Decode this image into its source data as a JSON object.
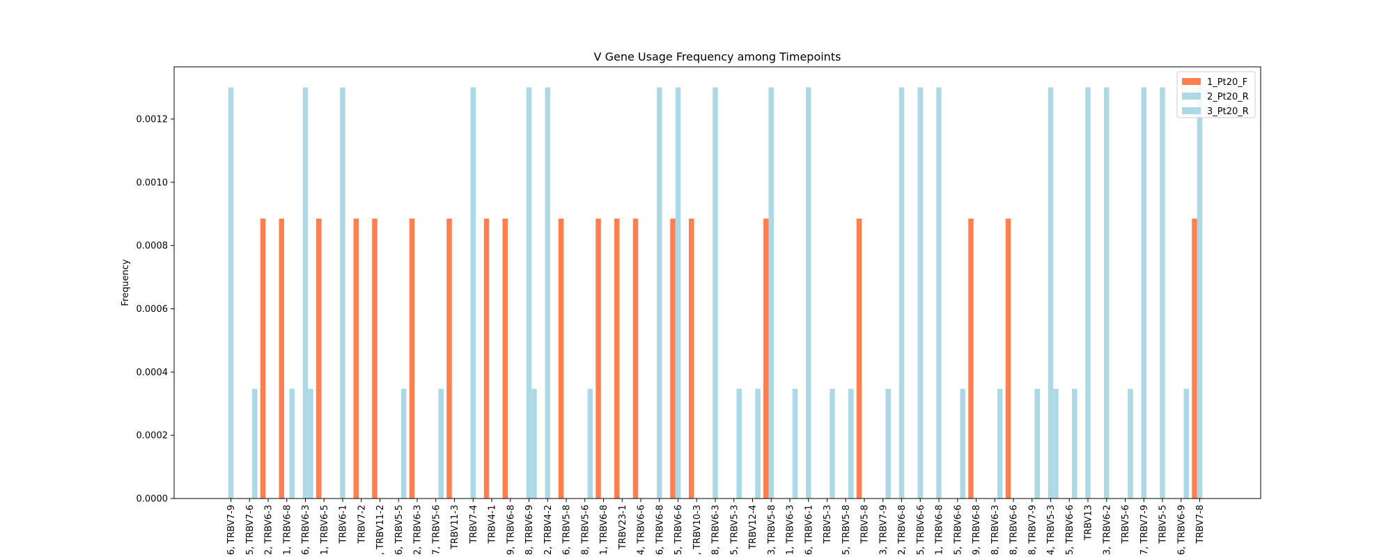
{
  "chart_data": {
    "type": "bar",
    "title": "V Gene Usage Frequency among Timepoints",
    "xlabel": "",
    "ylabel": "Frequency",
    "ylim": [
      0,
      0.001365
    ],
    "yticks": [
      0.0,
      0.0002,
      0.0004,
      0.0006,
      0.0008,
      0.001,
      0.0012
    ],
    "ytick_labels": [
      "0.0000",
      "0.0002",
      "0.0004",
      "0.0006",
      "0.0008",
      "0.0010",
      "0.0012"
    ],
    "legend_position": "top-right",
    "grid": false,
    "categories": [
      "6, TRBV7-9",
      "5, TRBV7-6",
      "2, TRBV6-3",
      "1, TRBV6-8",
      "6, TRBV6-3",
      "1, TRBV6-5",
      "TRBV6-1",
      "TRBV7-2",
      ", TRBV11-2",
      "6, TRBV5-5",
      "2, TRBV6-3",
      "7, TRBV5-6",
      "TRBV11-3",
      "TRBV7-4",
      "TRBV4-1",
      "9, TRBV6-8",
      "8, TRBV6-9",
      "2, TRBV4-2",
      "6, TRBV5-8",
      "8, TRBV5-6",
      "1, TRBV6-8",
      "TRBV23-1",
      "4, TRBV6-6",
      "6, TRBV6-8",
      "5, TRBV6-6",
      ", TRBV10-3",
      "8, TRBV6-3",
      "5, TRBV5-3",
      "TRBV12-4",
      "3, TRBV5-8",
      "1, TRBV6-3",
      "6, TRBV6-1",
      "TRBV5-3",
      "5, TRBV5-8",
      "TRBV5-8",
      "3, TRBV7-9",
      "2, TRBV6-8",
      "5, TRBV6-6",
      "1, TRBV6-8",
      "5, TRBV6-6",
      "9, TRBV6-8",
      "8, TRBV6-3",
      "8, TRBV6-6",
      "8, TRBV7-9",
      "4, TRBV5-3",
      "5, TRBV6-6",
      "TRBV13",
      "3, TRBV6-2",
      "TRBV5-6",
      "7, TRBV7-9",
      "TRBV5-5",
      "6, TRBV6-9",
      "TRBV7-8"
    ],
    "series": [
      {
        "name": "1_Pt20_F",
        "color": "#ff7f50",
        "values": [
          0,
          0,
          0.000885,
          0.000885,
          0,
          0.000885,
          0,
          0.000885,
          0.000885,
          0,
          0.000885,
          0,
          0.000885,
          0,
          0.000885,
          0.000885,
          0,
          0,
          0.000885,
          0,
          0.000885,
          0.000885,
          0.000885,
          0,
          0.000885,
          0.000885,
          0,
          0,
          0,
          0.000885,
          0,
          0,
          0,
          0,
          0.000885,
          0,
          0,
          0,
          0,
          0,
          0.000885,
          0,
          0.000885,
          0,
          0,
          0,
          0,
          0,
          0,
          0,
          0,
          0,
          0.000885
        ]
      },
      {
        "name": "2_Pt20_R",
        "color": "#add8e6",
        "values": [
          0.0013,
          0,
          0,
          0,
          0.0013,
          0,
          0.0013,
          0,
          0,
          0,
          0,
          0,
          0,
          0.0013,
          0,
          0,
          0.0013,
          0.0013,
          0,
          0,
          0,
          0,
          0,
          0.0013,
          0.0013,
          0,
          0.0013,
          0,
          0,
          0.0013,
          0,
          0.0013,
          0,
          0,
          0,
          0,
          0.0013,
          0.0013,
          0.0013,
          0,
          0,
          0,
          0,
          0,
          0.0013,
          0,
          0.0013,
          0.0013,
          0,
          0.0013,
          0.0013,
          0,
          0.0013
        ]
      },
      {
        "name": "3_Pt20_R",
        "color": "#add8e6",
        "values": [
          0,
          0.000347,
          0,
          0.000347,
          0.000347,
          0,
          0,
          0,
          0,
          0.000347,
          0,
          0.000347,
          0,
          0,
          0,
          0,
          0.000347,
          0,
          0,
          0.000347,
          0,
          0,
          0,
          0,
          0,
          0,
          0,
          0.000347,
          0.000347,
          0,
          0.000347,
          0,
          0.000347,
          0.000347,
          0,
          0.000347,
          0,
          0,
          0,
          0.000347,
          0,
          0.000347,
          0,
          0.000347,
          0.000347,
          0.000347,
          0,
          0,
          0.000347,
          0,
          0,
          0.000347,
          0
        ]
      }
    ]
  }
}
